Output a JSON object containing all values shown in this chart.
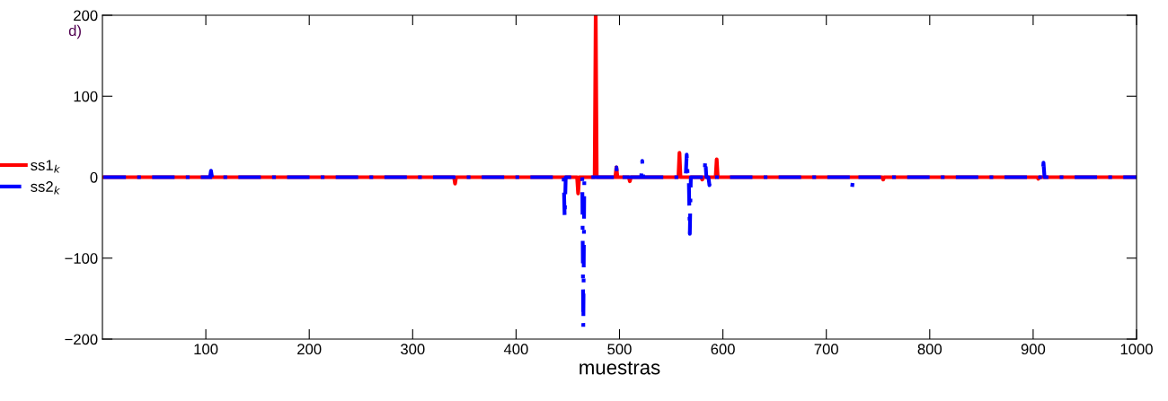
{
  "chart_data": {
    "type": "line",
    "xlabel": "muestras",
    "annotations": [
      "d)"
    ],
    "xlim": [
      0,
      1000
    ],
    "xticks": [
      100,
      200,
      300,
      400,
      500,
      600,
      700,
      800,
      900,
      1000
    ],
    "ylim": [
      -200,
      200
    ],
    "yticks": [
      -200,
      -100,
      0,
      100,
      200
    ],
    "grid": false,
    "legend": "left",
    "marker": "none",
    "series": [
      {
        "name": "ss1$_{k}$",
        "color": "#ff0000",
        "line_style": "solid",
        "x": [
          1,
          340,
          341,
          342,
          459,
          460,
          461,
          476,
          477,
          478,
          496,
          497,
          498,
          509,
          510,
          511,
          557,
          558,
          559,
          579,
          580,
          581,
          593,
          594,
          595,
          754,
          755,
          756,
          904,
          905,
          906,
          1000
        ],
        "values": [
          0,
          0,
          -8,
          0,
          0,
          -20,
          0,
          0,
          200,
          0,
          0,
          12,
          0,
          0,
          -5,
          0,
          0,
          30,
          0,
          0,
          -3,
          0,
          0,
          22,
          0,
          0,
          -3,
          0,
          0,
          -2,
          0,
          0
        ]
      },
      {
        "name": "ss2$_{k}$",
        "color": "#0000ff",
        "line_style": "dashed",
        "x": [
          1,
          104,
          105,
          106,
          446,
          447,
          448,
          464,
          465,
          466,
          496,
          497,
          498,
          521,
          522,
          523,
          564,
          565,
          566,
          567,
          568,
          569,
          582,
          583,
          584,
          586,
          587,
          588,
          724,
          725,
          726,
          909,
          910,
          911,
          1000
        ],
        "values": [
          0,
          0,
          8,
          0,
          0,
          -50,
          0,
          0,
          -185,
          0,
          0,
          12,
          0,
          0,
          20,
          0,
          0,
          28,
          0,
          0,
          -70,
          0,
          0,
          22,
          0,
          0,
          -10,
          0,
          0,
          -12,
          0,
          0,
          18,
          0,
          0
        ]
      }
    ]
  }
}
